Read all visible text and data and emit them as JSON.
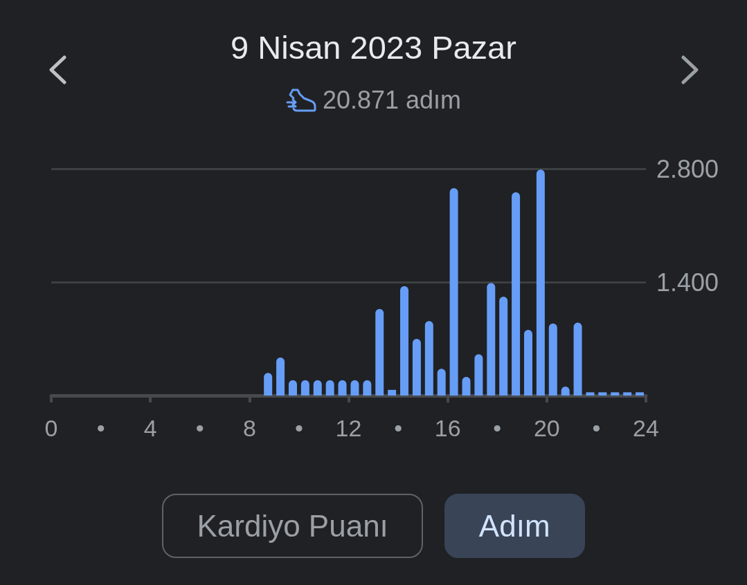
{
  "chart_data": {
    "type": "bar",
    "title": "9 Nisan 2023 Pazar",
    "subtitle": "20.871 adım",
    "annotations": [
      "Kardiyo Puanı",
      "Adım"
    ],
    "x": [
      8.75,
      9.25,
      9.75,
      10.25,
      10.75,
      11.25,
      11.75,
      12.25,
      12.75,
      13.25,
      13.75,
      14.25,
      14.75,
      15.25,
      15.75,
      16.25,
      16.75,
      17.25,
      17.75,
      18.25,
      18.75,
      19.25,
      19.75,
      20.25,
      20.75,
      21.25,
      21.75,
      22.25,
      22.75,
      23.25,
      23.75
    ],
    "values": [
      280,
      470,
      190,
      190,
      190,
      190,
      190,
      190,
      190,
      1070,
      70,
      1350,
      700,
      920,
      330,
      2560,
      230,
      510,
      1390,
      1220,
      2510,
      810,
      2790,
      890,
      110,
      900,
      40,
      40,
      40,
      40,
      40
    ],
    "color": "#669df6",
    "xlim": [
      0,
      24
    ],
    "xticks": [
      0,
      {
        "value": 2,
        "label": "•"
      },
      4,
      {
        "value": 6,
        "label": "•"
      },
      8,
      {
        "value": 10,
        "label": "•"
      },
      12,
      {
        "value": 14,
        "label": "•"
      },
      16,
      {
        "value": 18,
        "label": "•"
      },
      20,
      {
        "value": 22,
        "label": "•"
      },
      24
    ],
    "ylim": [
      0,
      2800
    ],
    "yticks": [
      {
        "value": 0,
        "label": null
      },
      {
        "value": 1400,
        "label": "1.400"
      },
      {
        "value": 2800,
        "label": "2.800"
      }
    ],
    "grid": "y"
  }
}
